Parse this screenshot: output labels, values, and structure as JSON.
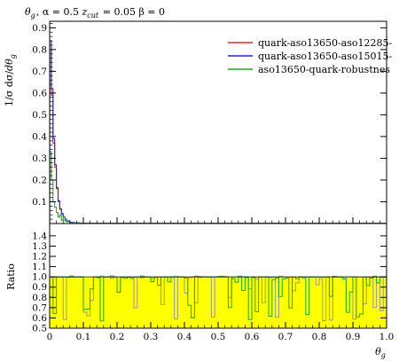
{
  "chart_data": {
    "type": "line",
    "title": "θ_g, α = 0.5 z_cut = 0.05 β = 0",
    "xlabel": "θ_g",
    "ylabel": "1/σ dσ/dθ_g",
    "ratio_label": "Ratio",
    "xlim": [
      0,
      1
    ],
    "ylim": [
      0,
      0.93
    ],
    "ratio_ylim": [
      0.5,
      1.52
    ],
    "x_ticks": [
      0,
      0.1,
      0.2,
      0.3,
      0.4,
      0.5,
      0.6,
      0.7,
      0.8,
      0.9,
      1.0
    ],
    "x_tick_labels": [
      "0",
      "0.1",
      "0.2",
      "0.3",
      "0.4",
      "0.5",
      "0.6",
      "0.7",
      "0.8",
      "0.9",
      "1.0"
    ],
    "y_ticks": [
      0.1,
      0.2,
      0.3,
      0.4,
      0.5,
      0.6,
      0.7,
      0.8,
      0.9
    ],
    "y_tick_labels": [
      "0.1",
      "0.2",
      "0.3",
      "0.4",
      "0.5",
      "0.6",
      "0.7",
      "0.8",
      "0.9"
    ],
    "ratio_ticks": [
      0.5,
      0.6,
      0.7,
      0.8,
      0.9,
      1.0,
      1.1,
      1.2,
      1.3,
      1.4
    ],
    "ratio_tick_labels": [
      "0.5",
      "0.6",
      "0.7",
      "0.8",
      "0.9",
      "1.0",
      "1.1",
      "1.2",
      "1.3",
      "1.4"
    ],
    "legend_position": "top-right",
    "grid": false,
    "band_color": "#ffff00",
    "bin_edges": [
      0,
      0.005,
      0.01,
      0.015,
      0.02,
      0.025,
      0.03,
      0.035,
      0.04,
      0.045,
      0.05,
      0.06,
      0.07,
      0.08,
      0.09,
      0.1,
      1.0
    ],
    "series": [
      {
        "name": "quark-aso13650-aso12285-",
        "color": "#ee2222",
        "values": [
          0.8,
          0.59,
          0.37,
          0.26,
          0.16,
          0.1,
          0.065,
          0.045,
          0.03,
          0.02,
          0.012,
          0.006,
          0.004,
          0.003,
          0.002,
          0.001
        ]
      },
      {
        "name": "quark-aso13650-aso15015-",
        "color": "#2222ee",
        "values": [
          0.84,
          0.62,
          0.39,
          0.27,
          0.165,
          0.105,
          0.068,
          0.046,
          0.031,
          0.02,
          0.012,
          0.006,
          0.004,
          0.003,
          0.002,
          0.001
        ]
      },
      {
        "name": "aso13650-quark-robustnes",
        "color": "#22aa22",
        "values": [
          0.33,
          0.2,
          0.1,
          0.075,
          0.05,
          0.03,
          0.04,
          0.015,
          0.03,
          0.012,
          0.008,
          0.004,
          0.003,
          0.002,
          0.002,
          0.001
        ]
      }
    ]
  }
}
